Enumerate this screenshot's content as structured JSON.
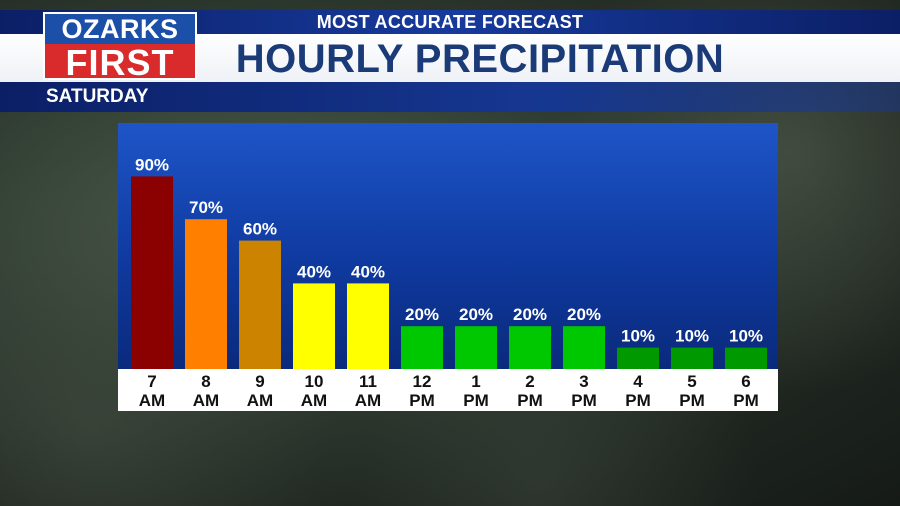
{
  "brand": {
    "logo_top": "OZARKS",
    "logo_bottom": "FIRST",
    "logo_top_color": "#1c4fa8",
    "logo_bottom_color": "#d92b2b"
  },
  "header": {
    "tagline": "MOST ACCURATE FORECAST",
    "title": "HOURLY PRECIPITATION",
    "day": "SATURDAY"
  },
  "chart_data": {
    "type": "bar",
    "title": "HOURLY PRECIPITATION",
    "xlabel": "",
    "ylabel": "",
    "ylim": [
      0,
      100
    ],
    "grid": false,
    "categories": [
      "7 AM",
      "8 AM",
      "9 AM",
      "10 AM",
      "11 AM",
      "12 PM",
      "1 PM",
      "2 PM",
      "3 PM",
      "4 PM",
      "5 PM",
      "6 PM"
    ],
    "tick_lines": [
      [
        "7",
        "AM"
      ],
      [
        "8",
        "AM"
      ],
      [
        "9",
        "AM"
      ],
      [
        "10",
        "AM"
      ],
      [
        "11",
        "AM"
      ],
      [
        "12",
        "PM"
      ],
      [
        "1",
        "PM"
      ],
      [
        "2",
        "PM"
      ],
      [
        "3",
        "PM"
      ],
      [
        "4",
        "PM"
      ],
      [
        "5",
        "PM"
      ],
      [
        "6",
        "PM"
      ]
    ],
    "values": [
      90,
      70,
      60,
      40,
      40,
      20,
      20,
      20,
      20,
      10,
      10,
      10
    ],
    "data_labels": [
      "90%",
      "70%",
      "60%",
      "40%",
      "40%",
      "20%",
      "20%",
      "20%",
      "20%",
      "10%",
      "10%",
      "10%"
    ],
    "colors": [
      "#8b0000",
      "#ff7f00",
      "#cc8400",
      "#ffff00",
      "#ffff00",
      "#00c800",
      "#00c800",
      "#00c800",
      "#00c800",
      "#009a00",
      "#009a00",
      "#009a00"
    ]
  }
}
